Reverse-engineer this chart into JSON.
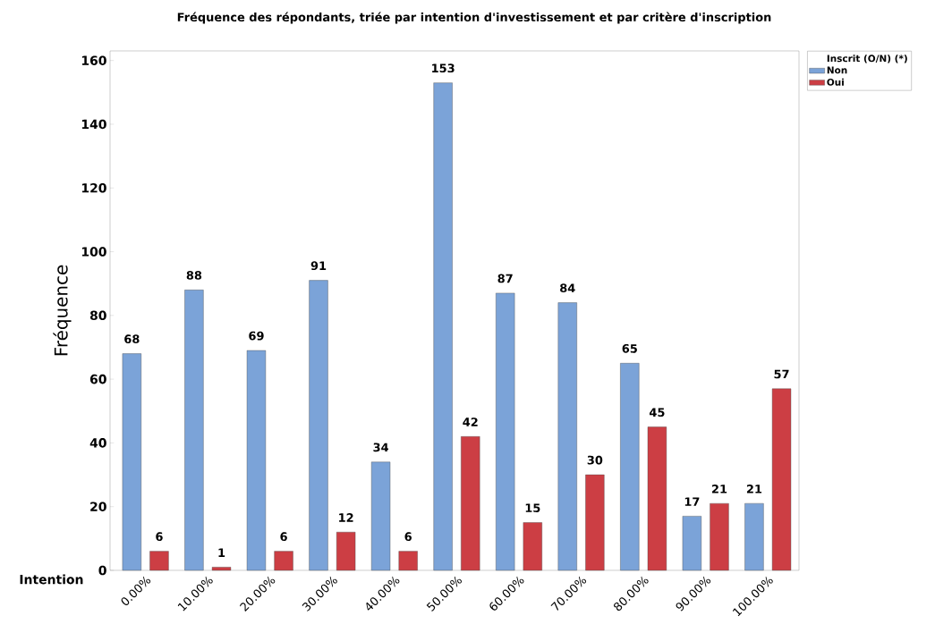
{
  "chart_data": {
    "type": "bar",
    "title": "Fréquence des répondants, triée par intention d'investissement et par critère d'inscription",
    "xlabel": "Intention",
    "ylabel": "Fréquence",
    "legend_title": "Inscrit (O/N) (*)",
    "categories": [
      "0.00%",
      "10.00%",
      "20.00%",
      "30.00%",
      "40.00%",
      "50.00%",
      "60.00%",
      "70.00%",
      "80.00%",
      "90.00%",
      "100.00%"
    ],
    "series": [
      {
        "name": "Non",
        "color": "#7ba3d8",
        "values": [
          68,
          88,
          69,
          91,
          34,
          153,
          87,
          84,
          65,
          17,
          21
        ]
      },
      {
        "name": "Oui",
        "color": "#cc3e44",
        "values": [
          6,
          1,
          6,
          12,
          6,
          42,
          15,
          30,
          45,
          21,
          57
        ]
      }
    ],
    "ylim": [
      0,
      163
    ],
    "yticks": [
      0,
      20,
      40,
      60,
      80,
      100,
      120,
      140,
      160
    ],
    "data_labels": true,
    "legend": "top right",
    "grid": false
  }
}
